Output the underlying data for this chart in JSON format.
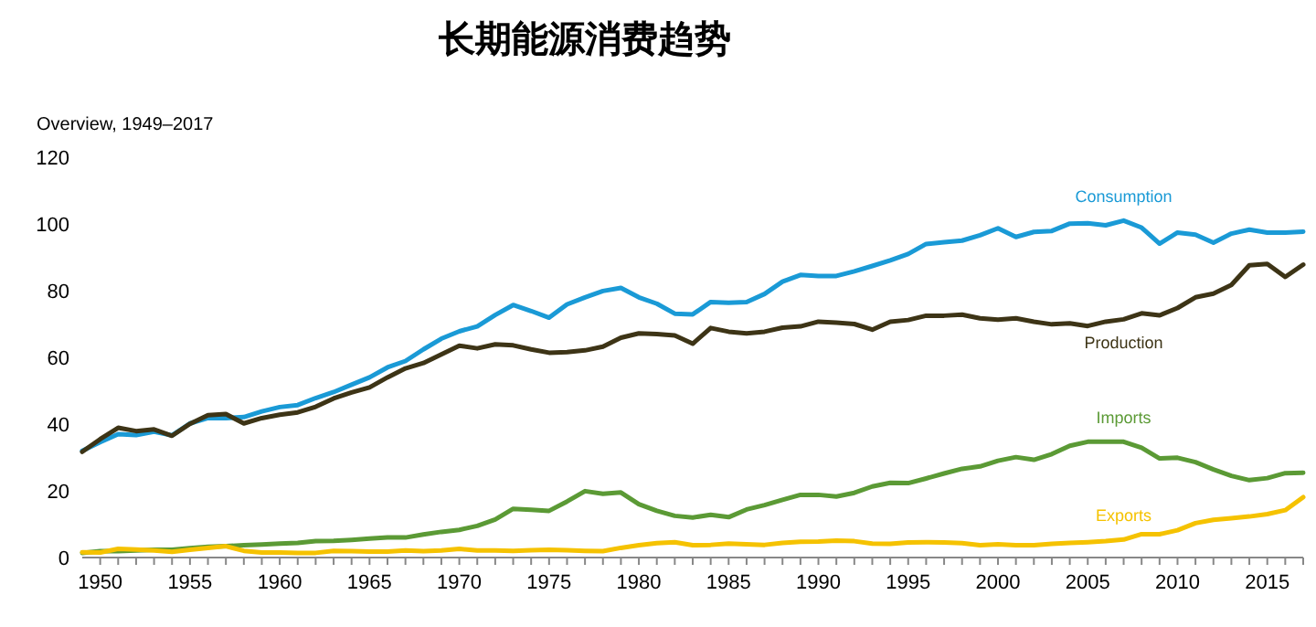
{
  "chart_data": {
    "type": "line",
    "title": "长期能源消费趋势",
    "subtitle": "Overview, 1949–2017",
    "x": [
      1949,
      1950,
      1951,
      1952,
      1953,
      1954,
      1955,
      1956,
      1957,
      1958,
      1959,
      1960,
      1961,
      1962,
      1963,
      1964,
      1965,
      1966,
      1967,
      1968,
      1969,
      1970,
      1971,
      1972,
      1973,
      1974,
      1975,
      1976,
      1977,
      1978,
      1979,
      1980,
      1981,
      1982,
      1983,
      1984,
      1985,
      1986,
      1987,
      1988,
      1989,
      1990,
      1991,
      1992,
      1993,
      1994,
      1995,
      1996,
      1997,
      1998,
      1999,
      2000,
      2001,
      2002,
      2003,
      2004,
      2005,
      2006,
      2007,
      2008,
      2009,
      2010,
      2011,
      2012,
      2013,
      2014,
      2015,
      2016,
      2017
    ],
    "series": [
      {
        "name": "Consumption",
        "color": "#1a9ad6",
        "values": [
          32,
          34.6,
          37,
          36.7,
          37.7,
          36.6,
          40.2,
          41.8,
          41.8,
          42.1,
          43.8,
          45.1,
          45.7,
          47.8,
          49.6,
          51.8,
          54,
          57,
          58.9,
          62.4,
          65.6,
          67.8,
          69.3,
          72.7,
          75.7,
          73.9,
          71.9,
          75.9,
          78,
          79.9,
          80.8,
          78,
          76.1,
          73.1,
          72.9,
          76.6,
          76.4,
          76.6,
          79,
          82.7,
          84.7,
          84.4,
          84.4,
          85.8,
          87.4,
          89.1,
          91,
          94,
          94.5,
          95,
          96.6,
          98.7,
          96.1,
          97.6,
          97.9,
          100.1,
          100.2,
          99.6,
          101,
          98.9,
          94.1,
          97.4,
          96.8,
          94.4,
          97.1,
          98.3,
          97.4,
          97.4,
          97.7
        ]
      },
      {
        "name": "Production",
        "color": "#3d3416",
        "values": [
          31.7,
          35.5,
          38.9,
          37.9,
          38.4,
          36.5,
          40.1,
          42.7,
          43,
          40.2,
          41.8,
          42.8,
          43.5,
          45.2,
          47.7,
          49.5,
          51,
          54,
          56.7,
          58.3,
          60.9,
          63.5,
          62.7,
          63.9,
          63.6,
          62.4,
          61.4,
          61.6,
          62.1,
          63.2,
          65.9,
          67.2,
          67,
          66.6,
          64.1,
          68.8,
          67.7,
          67.2,
          67.7,
          68.9,
          69.3,
          70.7,
          70.4,
          70,
          68.3,
          70.7,
          71.2,
          72.5,
          72.5,
          72.8,
          71.7,
          71.3,
          71.7,
          70.7,
          69.9,
          70.2,
          69.4,
          70.7,
          71.4,
          73.2,
          72.6,
          74.8,
          78,
          79.1,
          81.7,
          87.6,
          88,
          84.1,
          87.8
        ]
      },
      {
        "name": "Imports",
        "color": "#5b9a35",
        "values": [
          1.4,
          1.9,
          1.9,
          2.1,
          2.3,
          2.3,
          2.8,
          3.2,
          3.4,
          3.7,
          3.9,
          4.2,
          4.4,
          4.9,
          5,
          5.3,
          5.7,
          6,
          6,
          6.9,
          7.7,
          8.3,
          9.5,
          11.4,
          14.6,
          14.3,
          14,
          16.8,
          19.9,
          19.1,
          19.5,
          16,
          14,
          12.5,
          12,
          12.8,
          12.1,
          14.4,
          15.7,
          17.3,
          18.8,
          18.8,
          18.3,
          19.4,
          21.3,
          22.4,
          22.3,
          23.7,
          25.2,
          26.6,
          27.3,
          29,
          30.1,
          29.3,
          31,
          33.5,
          34.7,
          34.7,
          34.7,
          32.9,
          29.7,
          29.9,
          28.6,
          26.4,
          24.5,
          23.2,
          23.8,
          25.3,
          25.4
        ]
      },
      {
        "name": "Exports",
        "color": "#f5c200",
        "values": [
          1.6,
          1.5,
          2.6,
          2.4,
          2.1,
          1.7,
          2.3,
          2.9,
          3.4,
          2,
          1.5,
          1.5,
          1.4,
          1.4,
          2,
          1.9,
          1.8,
          1.8,
          2.1,
          1.9,
          2.1,
          2.6,
          2.1,
          2.1,
          2,
          2.2,
          2.3,
          2.2,
          2,
          1.9,
          2.9,
          3.7,
          4.3,
          4.6,
          3.7,
          3.8,
          4.2,
          4,
          3.8,
          4.4,
          4.7,
          4.8,
          5.1,
          4.9,
          4.2,
          4.1,
          4.5,
          4.6,
          4.5,
          4.3,
          3.7,
          4,
          3.7,
          3.7,
          4.1,
          4.4,
          4.6,
          4.9,
          5.4,
          7,
          7,
          8.2,
          10.3,
          11.3,
          11.8,
          12.3,
          13,
          14.2,
          18.1
        ]
      }
    ],
    "xlim": [
      1949,
      2017
    ],
    "xticks": [
      1950,
      {
        "value": 1951,
        "label": null
      },
      {
        "value": 1952,
        "label": null
      },
      {
        "value": 1953,
        "label": null
      },
      {
        "value": 1954,
        "label": null
      },
      1955,
      {
        "value": 1956,
        "label": null
      },
      {
        "value": 1957,
        "label": null
      },
      {
        "value": 1958,
        "label": null
      },
      {
        "value": 1959,
        "label": null
      },
      1960,
      {
        "value": 1961,
        "label": null
      },
      {
        "value": 1962,
        "label": null
      },
      {
        "value": 1963,
        "label": null
      },
      {
        "value": 1964,
        "label": null
      },
      1965,
      {
        "value": 1966,
        "label": null
      },
      {
        "value": 1967,
        "label": null
      },
      {
        "value": 1968,
        "label": null
      },
      {
        "value": 1969,
        "label": null
      },
      1970,
      {
        "value": 1971,
        "label": null
      },
      {
        "value": 1972,
        "label": null
      },
      {
        "value": 1973,
        "label": null
      },
      {
        "value": 1974,
        "label": null
      },
      1975,
      {
        "value": 1976,
        "label": null
      },
      {
        "value": 1977,
        "label": null
      },
      {
        "value": 1978,
        "label": null
      },
      {
        "value": 1979,
        "label": null
      },
      1980,
      {
        "value": 1981,
        "label": null
      },
      {
        "value": 1982,
        "label": null
      },
      {
        "value": 1983,
        "label": null
      },
      {
        "value": 1984,
        "label": null
      },
      1985,
      {
        "value": 1986,
        "label": null
      },
      {
        "value": 1987,
        "label": null
      },
      {
        "value": 1988,
        "label": null
      },
      {
        "value": 1989,
        "label": null
      },
      1990,
      {
        "value": 1991,
        "label": null
      },
      {
        "value": 1992,
        "label": null
      },
      {
        "value": 1993,
        "label": null
      },
      {
        "value": 1994,
        "label": null
      },
      1995,
      {
        "value": 1996,
        "label": null
      },
      {
        "value": 1997,
        "label": null
      },
      {
        "value": 1998,
        "label": null
      },
      {
        "value": 1999,
        "label": null
      },
      2000,
      {
        "value": 2001,
        "label": null
      },
      {
        "value": 2002,
        "label": null
      },
      {
        "value": 2003,
        "label": null
      },
      {
        "value": 2004,
        "label": null
      },
      2005,
      {
        "value": 2006,
        "label": null
      },
      {
        "value": 2007,
        "label": null
      },
      {
        "value": 2008,
        "label": null
      },
      {
        "value": 2009,
        "label": null
      },
      2010,
      {
        "value": 2011,
        "label": null
      },
      {
        "value": 2012,
        "label": null
      },
      {
        "value": 2013,
        "label": null
      },
      {
        "value": 2014,
        "label": null
      },
      2015,
      {
        "value": 2016,
        "label": null
      },
      {
        "value": 2017,
        "label": null
      }
    ],
    "ylim": [
      0,
      120
    ],
    "yticks": [
      0,
      20,
      40,
      60,
      80,
      100,
      120
    ],
    "grid": false,
    "marker": "none",
    "line_style": "solid"
  }
}
